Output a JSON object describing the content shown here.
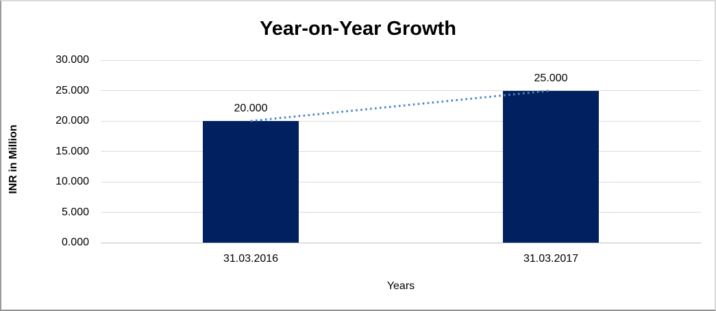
{
  "chart_data": {
    "type": "bar",
    "title": "Year-on-Year Growth",
    "xlabel": "Years",
    "ylabel": "INR in Million",
    "categories": [
      "31.03.2016",
      "31.03.2017"
    ],
    "values": [
      20.0,
      25.0
    ],
    "data_labels": [
      "20.000",
      "25.000"
    ],
    "y_ticks": [
      0,
      5,
      10,
      15,
      20,
      25,
      30
    ],
    "y_tick_labels": [
      "0.000",
      "5.000",
      "10.000",
      "15.000",
      "20.000",
      "25.000",
      "30.000"
    ],
    "ylim": [
      0,
      30
    ],
    "grid": true,
    "legend": "none",
    "bar_color": "#002060",
    "gridline_color": "#d9d9d9",
    "trendline": {
      "style": "dotted",
      "color": "#4a86c8",
      "from_value": 20.0,
      "to_value": 25.0
    }
  }
}
